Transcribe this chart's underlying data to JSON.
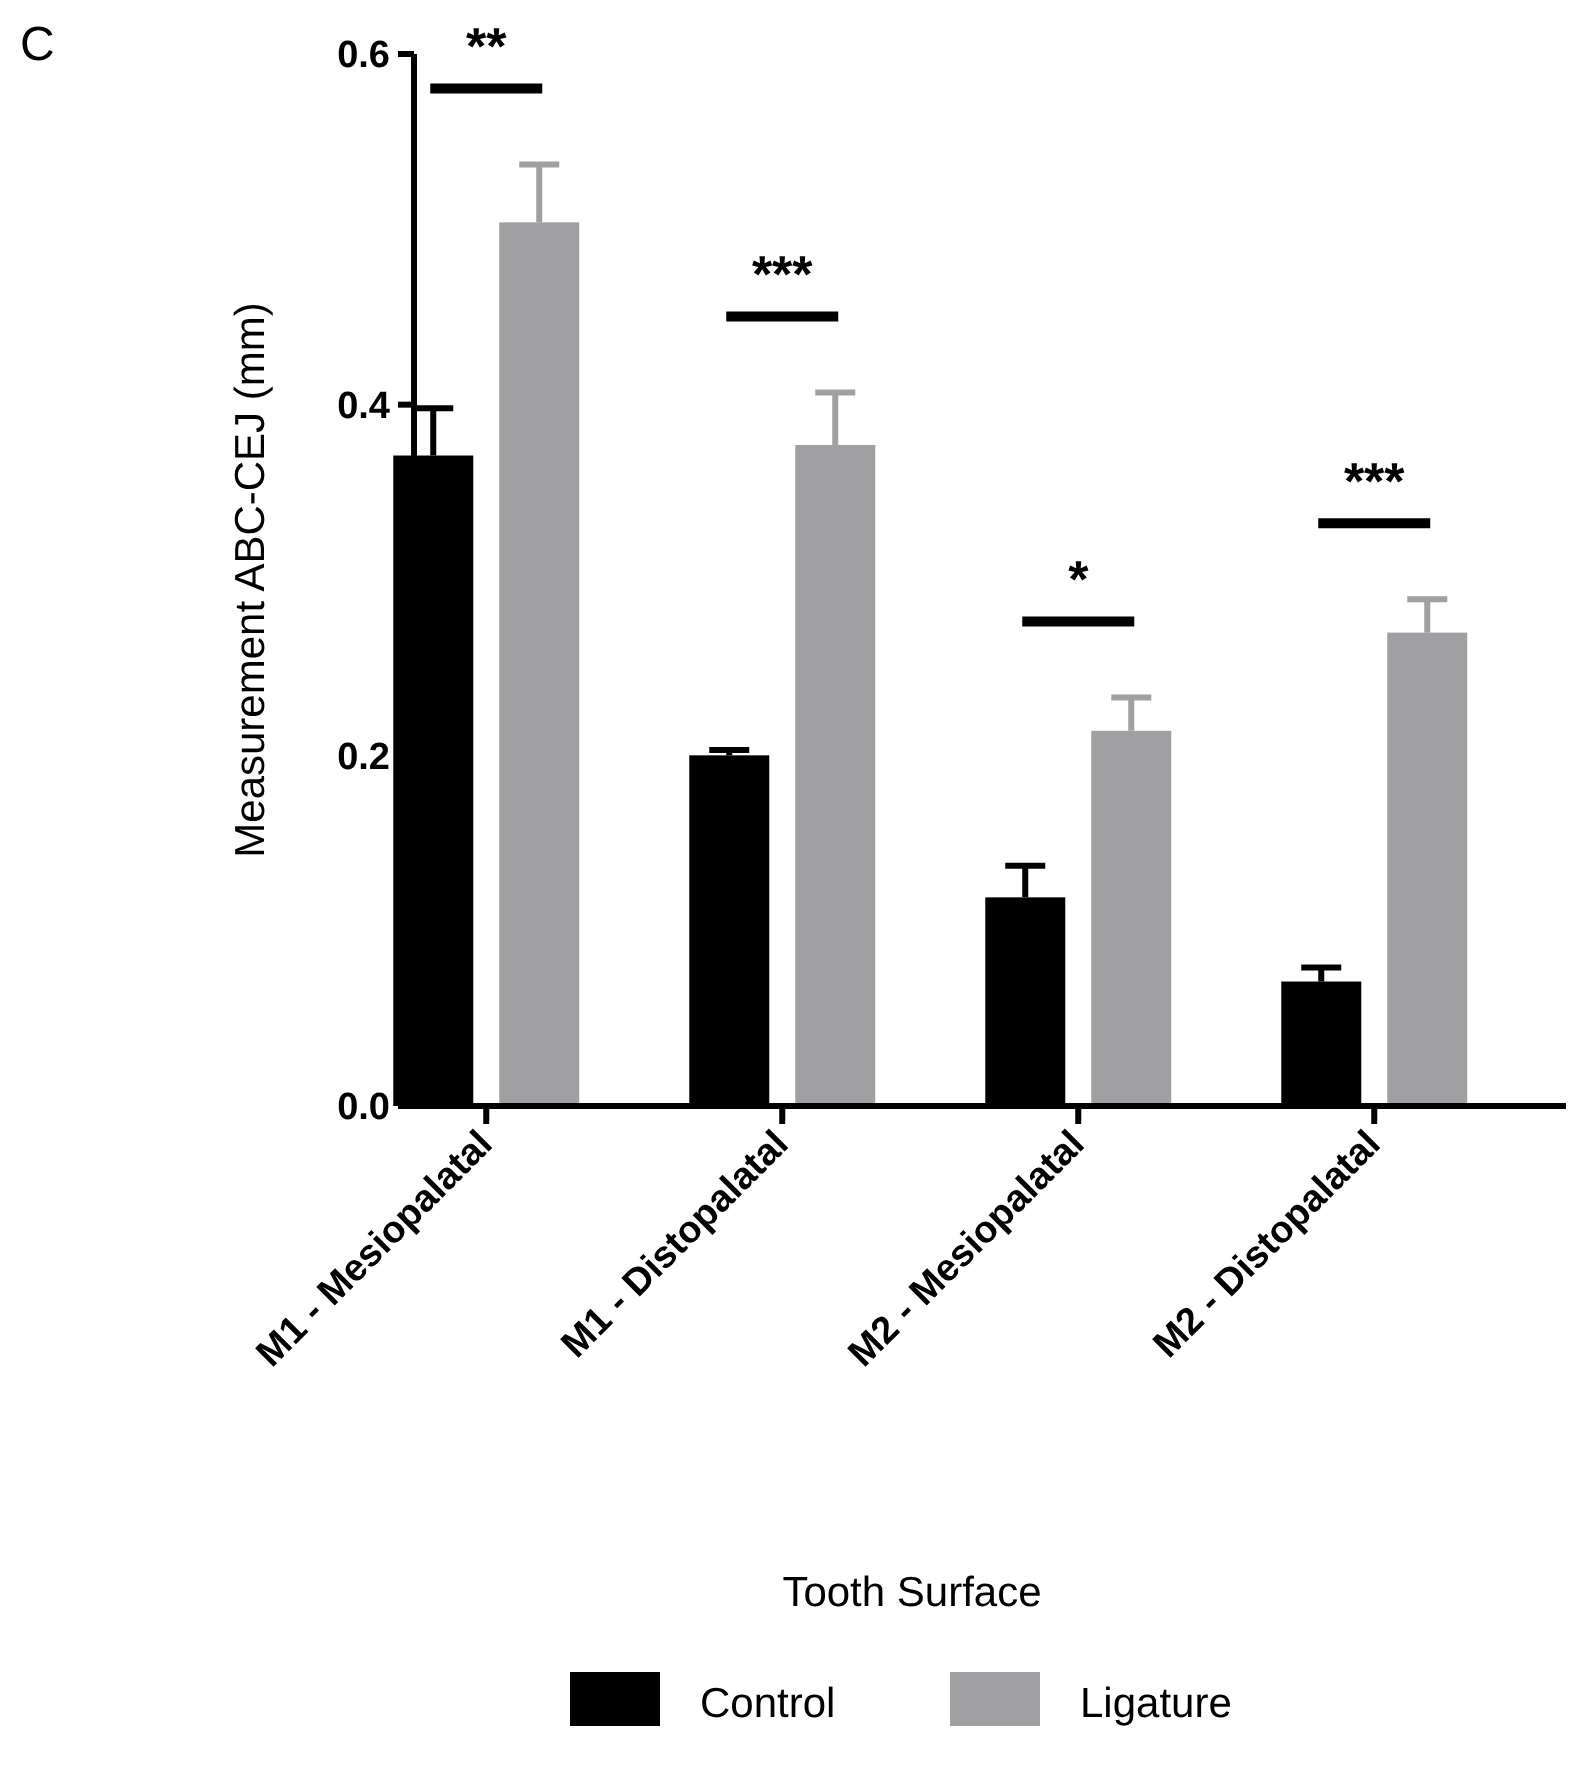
{
  "chart_data": {
    "type": "bar",
    "ylabel": "Measurement ABC-CEJ (mm)",
    "xlabel": "Tooth Surface",
    "categories": [
      "M1 - Mesiopalatal",
      "M1 - Distopalatal",
      "M2 - Mesiopalatal",
      "M2 - Distopalatal"
    ],
    "series": [
      {
        "name": "Control",
        "color": "#000000",
        "values": [
          0.371,
          0.2,
          0.119,
          0.071
        ],
        "errors": [
          0.027,
          0.003,
          0.018,
          0.008
        ]
      },
      {
        "name": "Ligature",
        "color": "#a0a0a2",
        "values": [
          0.504,
          0.377,
          0.214,
          0.27
        ],
        "errors": [
          0.033,
          0.03,
          0.019,
          0.019
        ]
      }
    ],
    "ylim": [
      0,
      0.6
    ],
    "yticks": [
      {
        "value": 0,
        "label": "0.0"
      },
      {
        "value": 0.2,
        "label": "0.2"
      },
      {
        "value": 0.4,
        "label": "0.4"
      },
      {
        "value": 0.6,
        "label": "0.6"
      }
    ],
    "grid": false,
    "legend": "bottom",
    "annotations": [
      "C",
      "**",
      "***",
      "*",
      "***"
    ]
  }
}
